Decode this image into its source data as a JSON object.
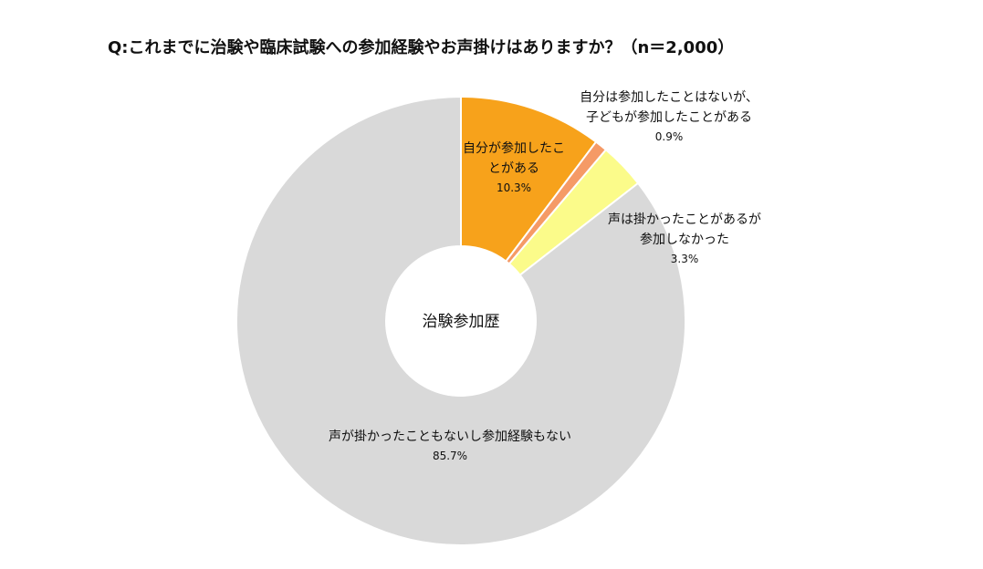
{
  "chart_data": {
    "type": "pie",
    "title": "Q:これまでに治験や臨床試験への参加経験やお声掛けはありますか？（n＝2,000）",
    "center_label": "治験参加歴",
    "unit": "%",
    "slices": [
      {
        "label_lines": [
          "自分が参加したこ",
          "とがある"
        ],
        "value": 10.3,
        "value_text": "10.3%",
        "color": "#F7A21B"
      },
      {
        "label_lines": [
          "自分は参加したことはないが、",
          "子どもが参加したことがある"
        ],
        "value": 0.9,
        "value_text": "0.9%",
        "color": "#F59A66"
      },
      {
        "label_lines": [
          "声は掛かったことがあるが",
          "参加しなかった"
        ],
        "value": 3.3,
        "value_text": "3.3%",
        "color": "#FBFB8A"
      },
      {
        "label_lines": [
          "声が掛かったこともないし参加経験もない"
        ],
        "value": 85.7,
        "value_text": "85.7%",
        "color": "#D9D9D9"
      }
    ]
  }
}
